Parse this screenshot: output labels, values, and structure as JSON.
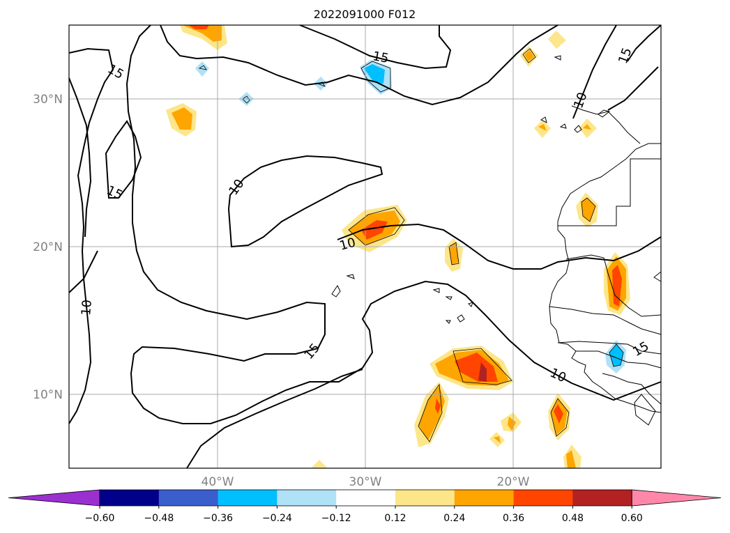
{
  "title": "2022091000 F012",
  "lat_labels": [
    "30°N",
    "20°N",
    "10°N"
  ],
  "lon_labels": [
    "40°W",
    "30°W",
    "20°W"
  ],
  "contour_labels": [
    "15",
    "15",
    "15",
    "10",
    "10",
    "15",
    "10",
    "10",
    "15",
    "10",
    "15"
  ],
  "colorbar": {
    "ticks": [
      "−0.60",
      "−0.48",
      "−0.36",
      "−0.24",
      "−0.12",
      "0.12",
      "0.24",
      "0.36",
      "0.48",
      "0.60"
    ],
    "colors": [
      "#9b30d0",
      "#00008b",
      "#3a5fcd",
      "#00bfff",
      "#afe1f7",
      "#ffffff",
      "#fde68a",
      "#ffa500",
      "#ff4500",
      "#b22222",
      "#ff88aa"
    ]
  },
  "colors": {
    "contour_line": "#000000",
    "grid": "#a9a9a9",
    "coast": "#000000"
  }
}
